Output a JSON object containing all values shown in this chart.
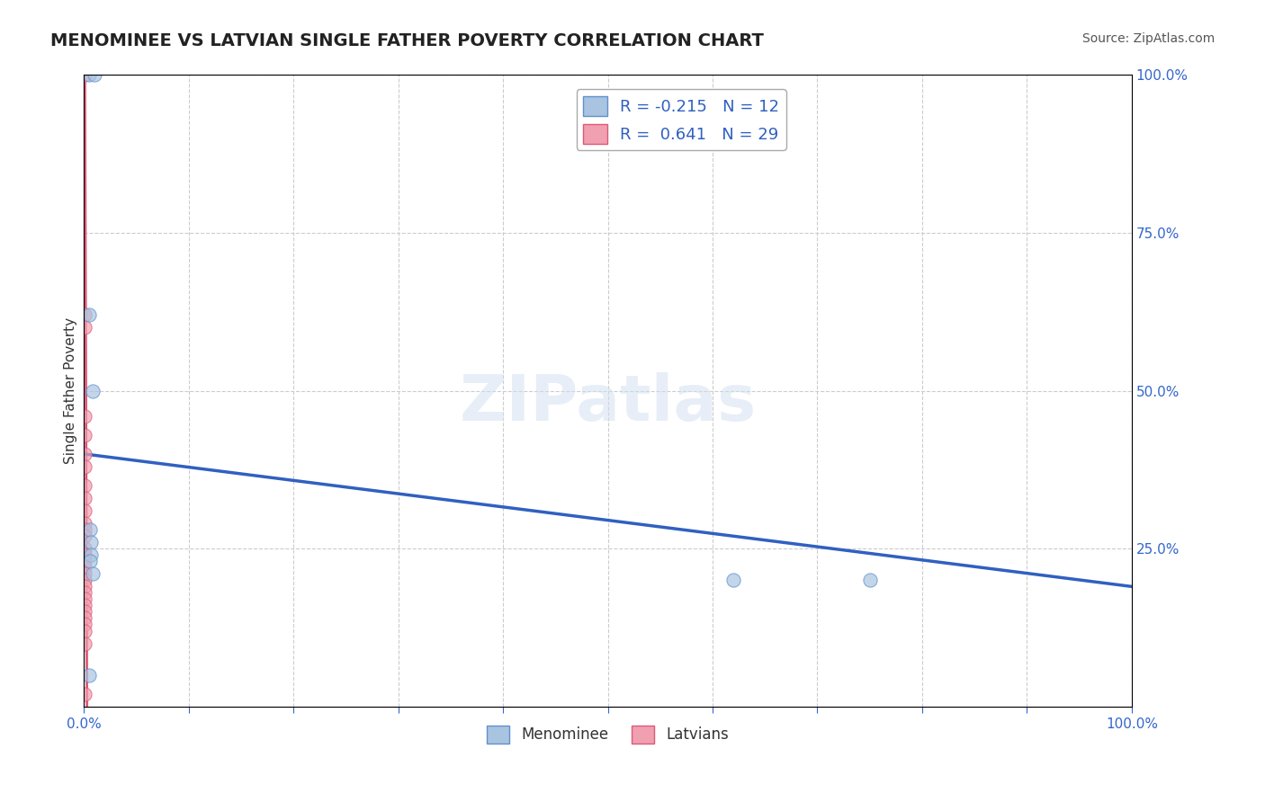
{
  "title": "MENOMINEE VS LATVIAN SINGLE FATHER POVERTY CORRELATION CHART",
  "source": "Source: ZipAtlas.com",
  "xlabel": "",
  "ylabel": "Single Father Poverty",
  "xlim": [
    0.0,
    1.0
  ],
  "ylim": [
    0.0,
    1.0
  ],
  "ytick_labels": [
    "",
    "25.0%",
    "50.0%",
    "75.0%",
    "100.0%"
  ],
  "ytick_values": [
    0.0,
    0.25,
    0.5,
    0.75,
    1.0
  ],
  "xtick_labels": [
    "0.0%",
    "",
    "",
    "",
    "",
    "",
    "",
    "",
    "",
    "",
    "100.0%"
  ],
  "xtick_values": [
    0.0,
    0.1,
    0.2,
    0.3,
    0.4,
    0.5,
    0.6,
    0.7,
    0.8,
    0.9,
    1.0
  ],
  "menominee_R": -0.215,
  "menominee_N": 12,
  "latvian_R": 0.641,
  "latvian_N": 29,
  "menominee_color": "#a8c4e0",
  "latvian_color": "#f0a0b0",
  "trend_blue": "#3060c0",
  "trend_pink": "#e05878",
  "legend_r_color": "#3060c0",
  "menominee_x": [
    0.005,
    0.01,
    0.005,
    0.008,
    0.006,
    0.007,
    0.007,
    0.006,
    0.005,
    0.62,
    0.75,
    0.008
  ],
  "menominee_y": [
    1.0,
    1.0,
    0.62,
    0.5,
    0.28,
    0.26,
    0.24,
    0.23,
    0.05,
    0.2,
    0.2,
    0.21
  ],
  "latvian_x": [
    0.001,
    0.001,
    0.001,
    0.001,
    0.001,
    0.001,
    0.001,
    0.001,
    0.001,
    0.001,
    0.001,
    0.001,
    0.001,
    0.001,
    0.001,
    0.001,
    0.001,
    0.001,
    0.001,
    0.001,
    0.001,
    0.001,
    0.001,
    0.001,
    0.001,
    0.001,
    0.001,
    0.001,
    0.001
  ],
  "latvian_y": [
    1.0,
    0.62,
    0.6,
    0.46,
    0.43,
    0.4,
    0.38,
    0.35,
    0.33,
    0.31,
    0.29,
    0.28,
    0.27,
    0.25,
    0.24,
    0.23,
    0.22,
    0.21,
    0.2,
    0.19,
    0.18,
    0.17,
    0.16,
    0.15,
    0.14,
    0.13,
    0.12,
    0.1,
    0.02
  ],
  "watermark": "ZIPatlas",
  "background_color": "#ffffff",
  "grid_color": "#cccccc"
}
